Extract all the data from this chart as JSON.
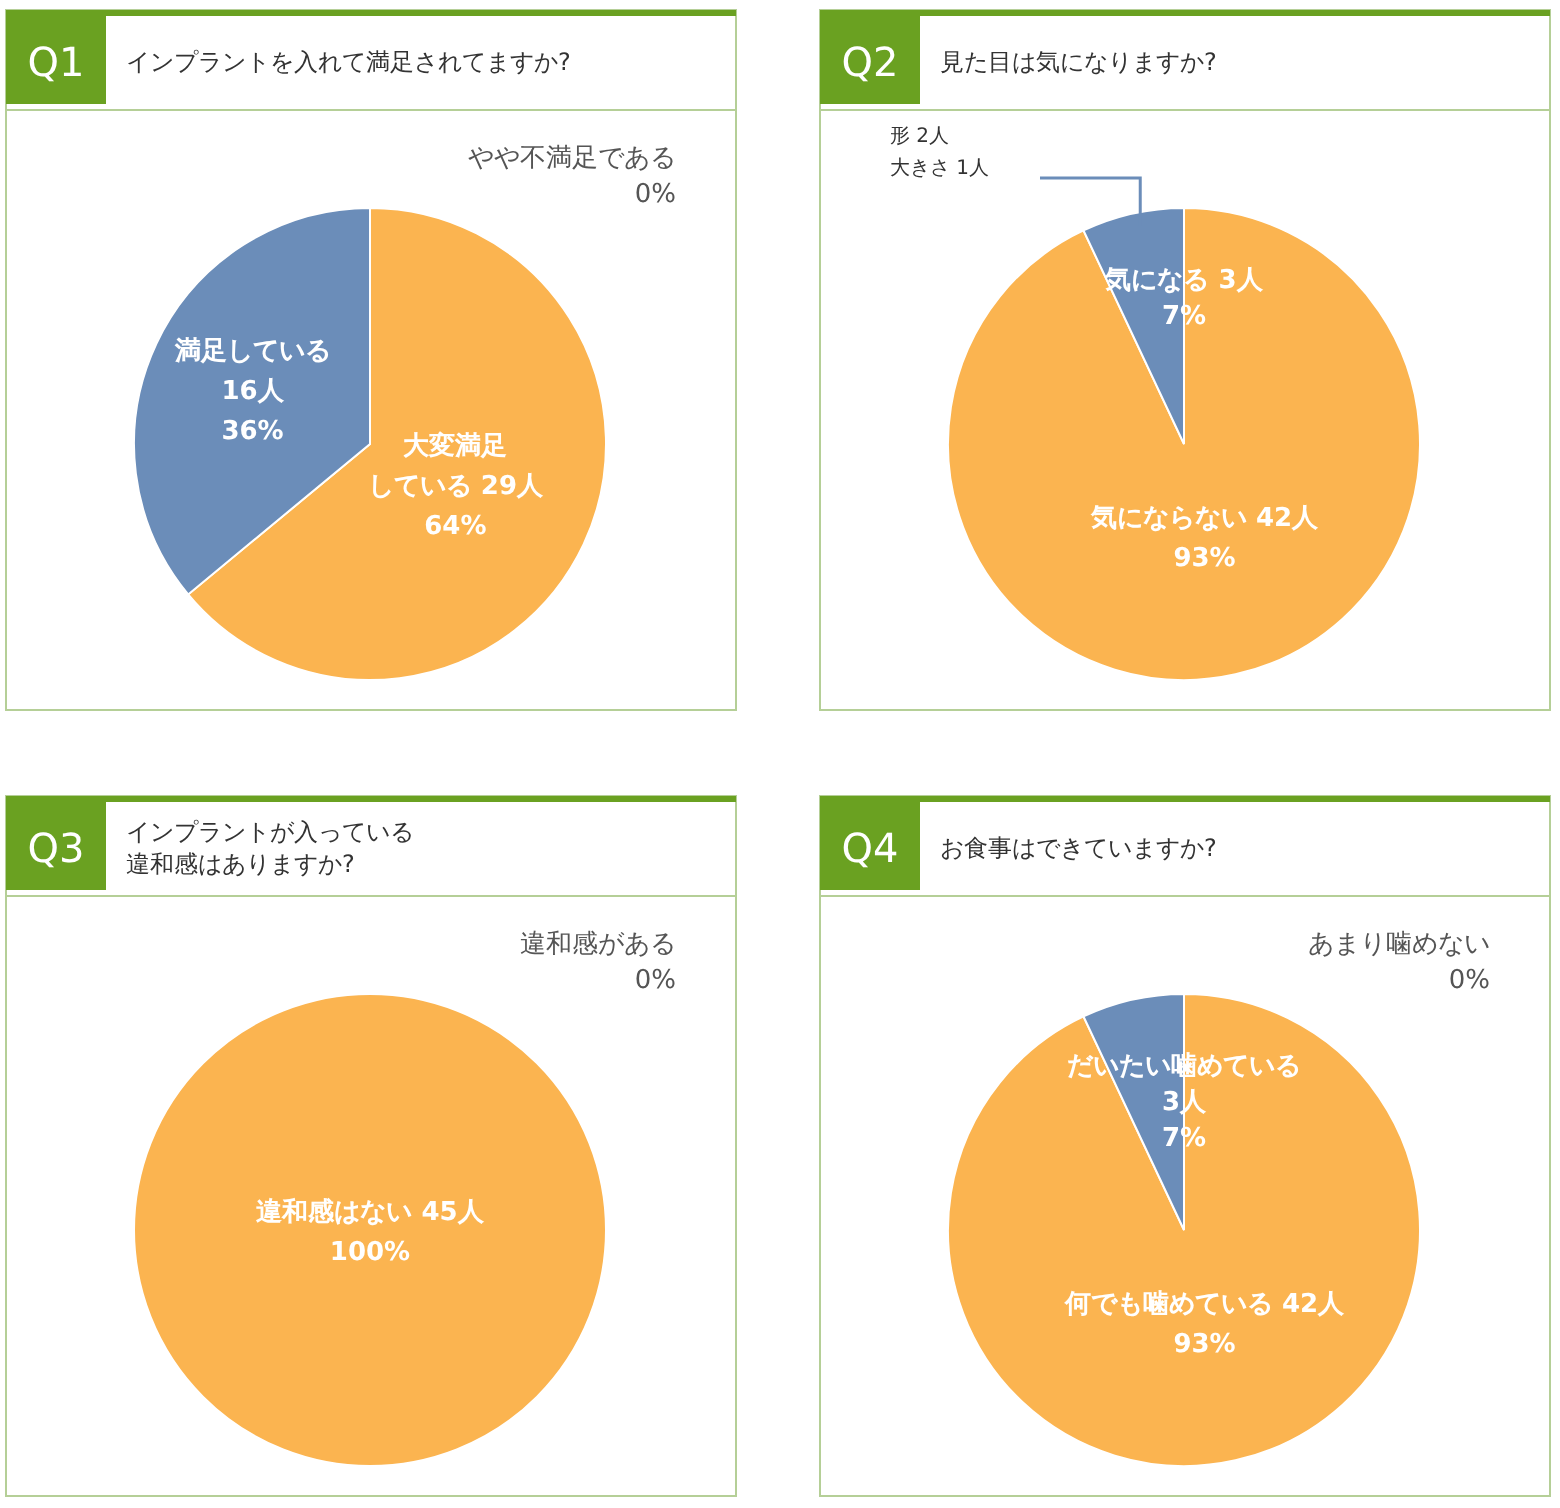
{
  "chart_data": [
    {
      "type": "pie",
      "title": "Q1",
      "subtitle": "インプラントを入れて満足されてますか?",
      "categories": [
        "大変満足している 29人",
        "満足している 16人",
        "やや不満足である"
      ],
      "values": [
        64,
        36,
        0
      ],
      "colors": [
        "#fbb450",
        "#6b8db9",
        "#c8c8c8"
      ],
      "value_labels": [
        "64%",
        "36%",
        "0%"
      ]
    },
    {
      "type": "pie",
      "title": "Q2",
      "subtitle": "見た目は気になりますか?",
      "categories": [
        "気にならない 42人",
        "気になる 3人"
      ],
      "values": [
        93,
        7
      ],
      "colors": [
        "#fbb450",
        "#6b8db9"
      ],
      "value_labels": [
        "93%",
        "7%"
      ],
      "annotations": [
        "形 2人",
        "大きさ 1人"
      ]
    },
    {
      "type": "pie",
      "title": "Q3",
      "subtitle": "インプラントが入っている違和感はありますか?",
      "categories": [
        "違和感はない 45人",
        "違和感がある"
      ],
      "values": [
        100,
        0
      ],
      "colors": [
        "#fbb450",
        "#6b8db9"
      ],
      "value_labels": [
        "100%",
        "0%"
      ]
    },
    {
      "type": "pie",
      "title": "Q4",
      "subtitle": "お食事はできていますか?",
      "categories": [
        "何でも噛めている 42人",
        "だいたい噛めている 3人",
        "あまり噛めない"
      ],
      "values": [
        93,
        7,
        0
      ],
      "colors": [
        "#fbb450",
        "#6b8db9",
        "#c8c8c8"
      ],
      "value_labels": [
        "93%",
        "7%",
        "0%"
      ]
    }
  ]
}
